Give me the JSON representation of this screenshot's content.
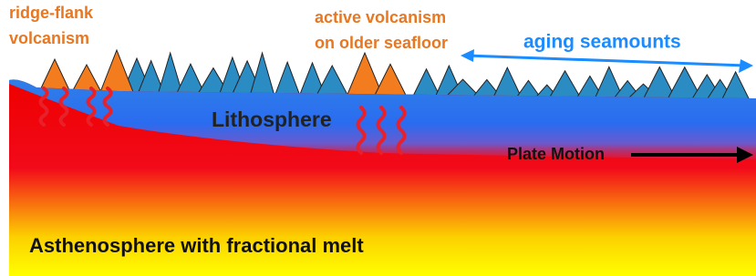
{
  "labels": {
    "ridge_flank": [
      "ridge-flank",
      "volcanism"
    ],
    "active": [
      "active volcanism",
      "on older seafloor"
    ],
    "aging": "aging seamounts",
    "lithosphere": "Lithosphere",
    "plate_motion": "Plate Motion",
    "asthenosphere": "Asthenosphere with fractional melt"
  }
}
